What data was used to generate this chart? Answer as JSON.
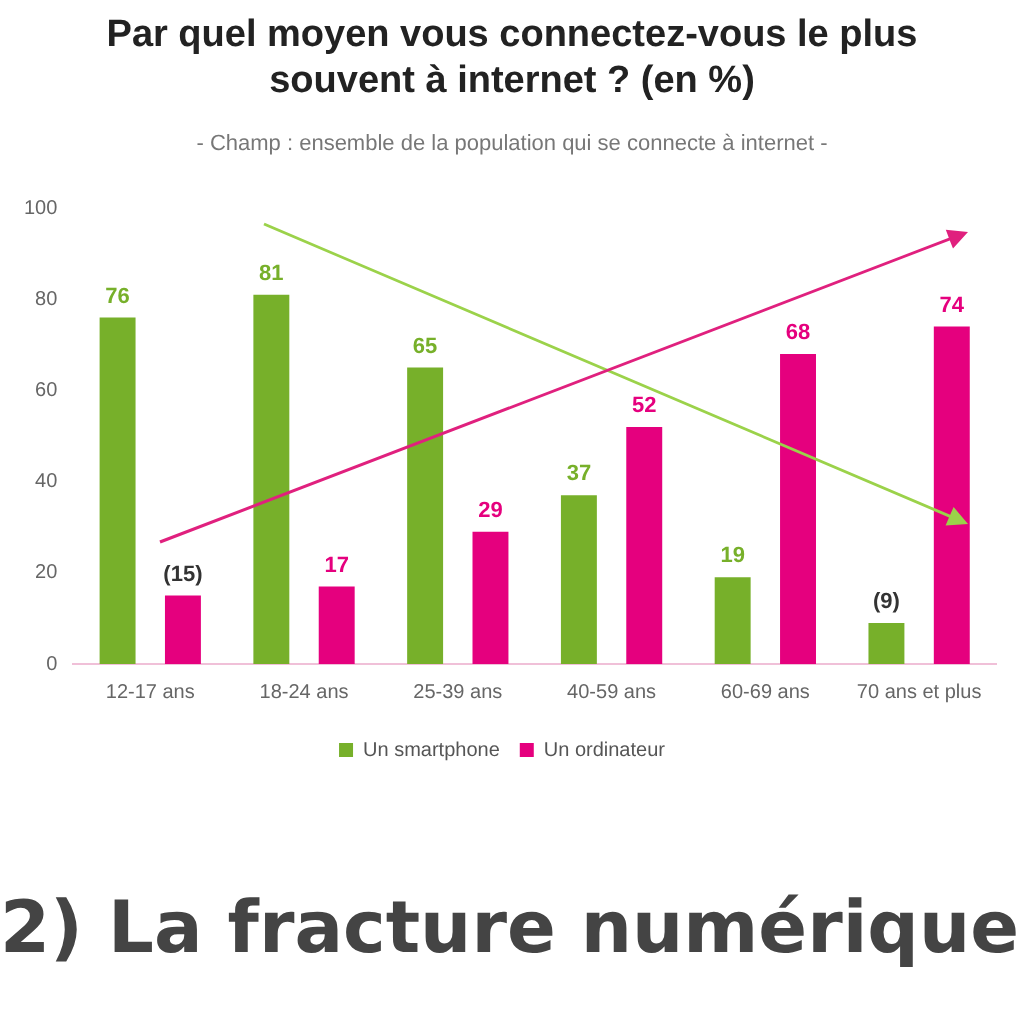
{
  "chart_data": {
    "type": "bar",
    "title": "Par quel moyen vous connectez-vous le plus souvent à internet ? (en %)",
    "subtitle": "- Champ : ensemble de la population qui se connecte à internet -",
    "categories": [
      "12-17 ans",
      "18-24 ans",
      "25-39 ans",
      "40-59 ans",
      "60-69 ans",
      "70 ans et plus"
    ],
    "series": [
      {
        "name": "Un smartphone",
        "color": "#77b02a",
        "values": [
          76,
          81,
          65,
          37,
          19,
          9
        ],
        "value_labels": [
          "76",
          "81",
          "65",
          "37",
          "19",
          "(9)"
        ]
      },
      {
        "name": "Un ordinateur",
        "color": "#e5007e",
        "values": [
          15,
          17,
          29,
          52,
          68,
          74
        ],
        "value_labels": [
          "(15)",
          "17",
          "29",
          "52",
          "68",
          "74"
        ]
      }
    ],
    "ylim": [
      0,
      100
    ],
    "yticks": [
      0,
      20,
      40,
      60,
      80,
      100
    ],
    "grid": false,
    "legend": "bottom",
    "annotations": [
      "2) La fracture numérique"
    ]
  }
}
